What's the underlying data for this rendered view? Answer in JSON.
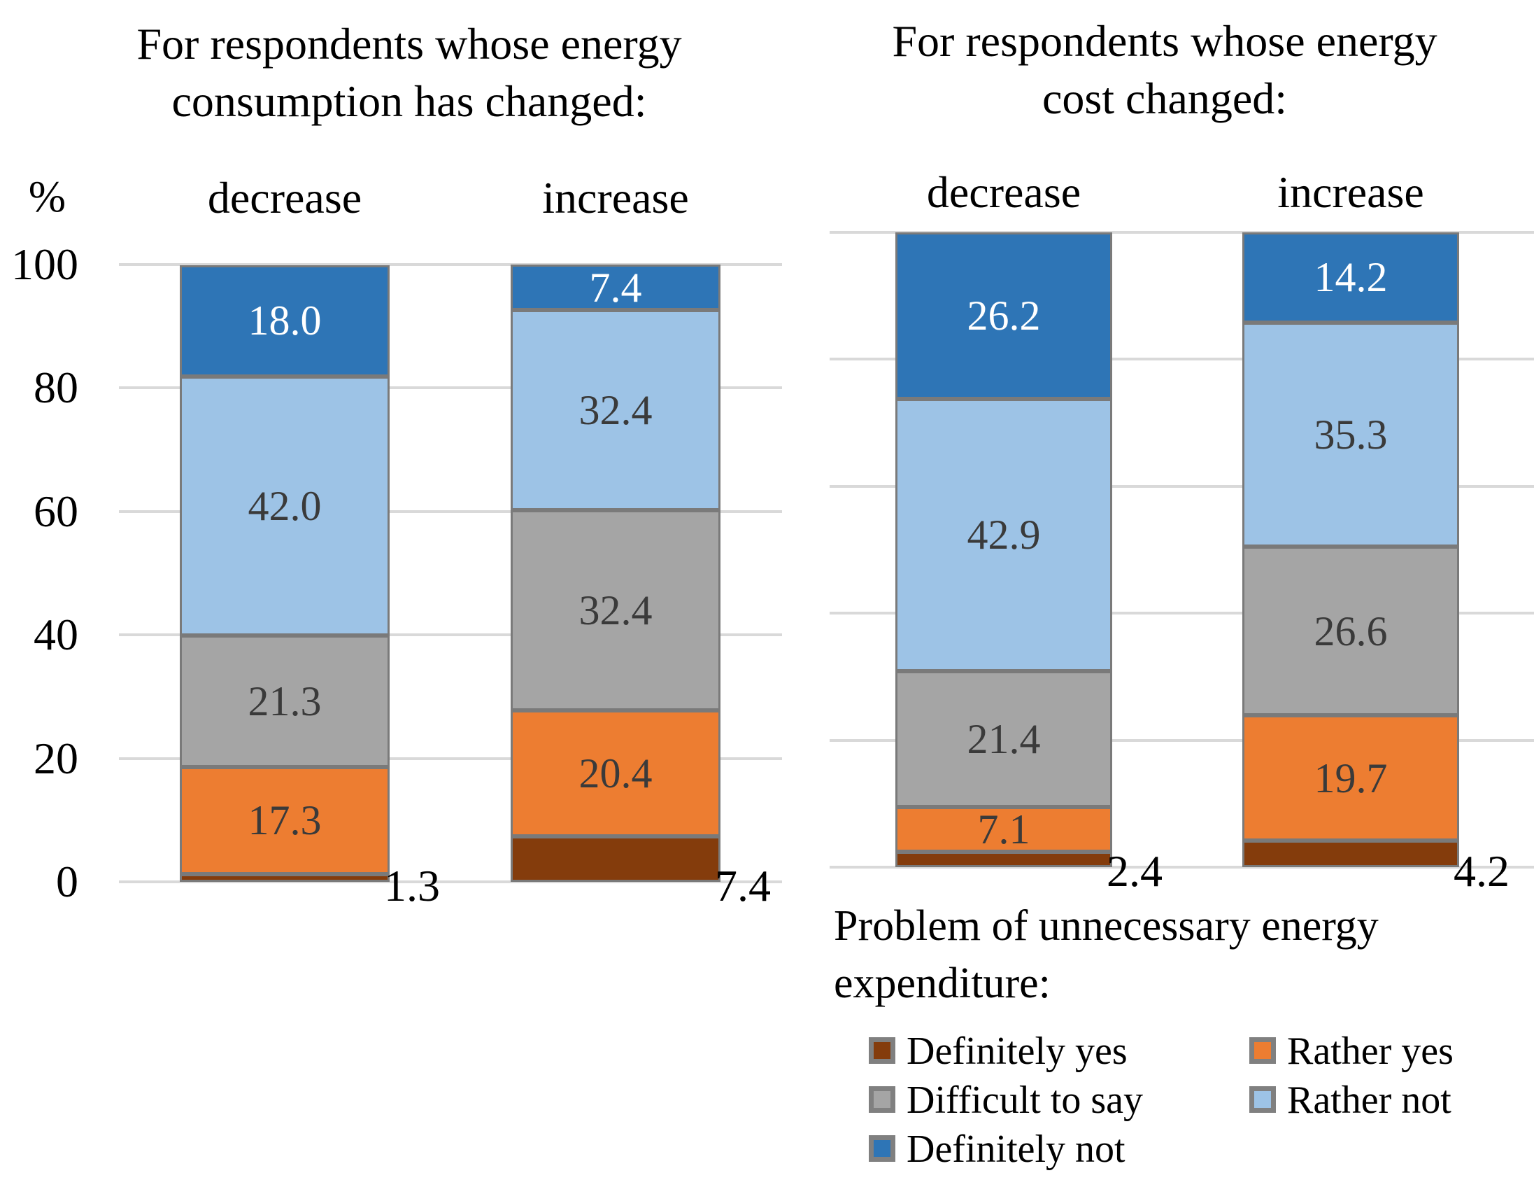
{
  "figure": {
    "background": "#ffffff"
  },
  "y_axis": {
    "unit": "%",
    "ticks": [
      100,
      80,
      60,
      40,
      20,
      0
    ]
  },
  "series_colors": {
    "Definitely yes": "#843C0C",
    "Rather yes": "#ED7D31",
    "Difficult to say": "#A5A5A5",
    "Rather not": "#9DC3E6",
    "Definitely not": "#2E75B6"
  },
  "chart_styles": {
    "gridline": "#D9D9D9",
    "segment_border": "#7A7A7A",
    "label_dark": "#3A3A3A",
    "label_light": "#FFFFFF",
    "label_outside": "#000000"
  },
  "chart_data": [
    {
      "type": "bar",
      "stacked": true,
      "orientation": "vertical",
      "title": "For respondents whose energy consumption has changed:",
      "title_lines": [
        "For respondents whose energy",
        "consumption has changed:"
      ],
      "categories": [
        "decrease",
        "increase"
      ],
      "series": [
        {
          "name": "Definitely yes",
          "values": [
            1.3,
            7.4
          ],
          "label_position": "outside-base"
        },
        {
          "name": "Rather yes",
          "values": [
            17.3,
            20.4
          ]
        },
        {
          "name": "Difficult to say",
          "values": [
            21.3,
            32.4
          ]
        },
        {
          "name": "Rather not",
          "values": [
            42.0,
            32.4
          ]
        },
        {
          "name": "Definitely not",
          "values": [
            18.0,
            7.4
          ],
          "label_color": "light"
        }
      ],
      "ylabel": "%",
      "ylim": [
        0,
        100
      ],
      "gridline_step": 20,
      "grid": true,
      "legend_position": "shared-bottom-right"
    },
    {
      "type": "bar",
      "stacked": true,
      "orientation": "vertical",
      "title": "For respondents whose energy cost changed:",
      "title_lines": [
        "For respondents whose energy",
        "cost changed:"
      ],
      "categories": [
        "decrease",
        "increase"
      ],
      "series": [
        {
          "name": "Definitely yes",
          "values": [
            2.4,
            4.2
          ],
          "label_position": "outside-base"
        },
        {
          "name": "Rather yes",
          "values": [
            7.1,
            19.7
          ]
        },
        {
          "name": "Difficult to say",
          "values": [
            21.4,
            26.6
          ]
        },
        {
          "name": "Rather not",
          "values": [
            42.9,
            35.3
          ]
        },
        {
          "name": "Definitely not",
          "values": [
            26.2,
            14.2
          ],
          "label_color": "light"
        }
      ],
      "ylabel": "",
      "ylim": [
        0,
        100
      ],
      "gridline_step": 20,
      "grid": true,
      "legend_position": "shared-bottom-right"
    }
  ],
  "legend": {
    "title": "Problem of unnecessary energy expenditure:",
    "title_lines": [
      "Problem of unnecessary energy",
      "expenditure:"
    ],
    "items": [
      {
        "label": "Definitely yes"
      },
      {
        "label": "Rather yes"
      },
      {
        "label": "Difficult to say"
      },
      {
        "label": "Rather not"
      },
      {
        "label": "Definitely not"
      }
    ]
  }
}
